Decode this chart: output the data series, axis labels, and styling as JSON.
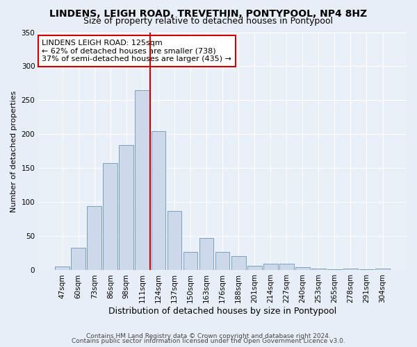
{
  "title": "LINDENS, LEIGH ROAD, TREVETHIN, PONTYPOOL, NP4 8HZ",
  "subtitle": "Size of property relative to detached houses in Pontypool",
  "xlabel": "Distribution of detached houses by size in Pontypool",
  "ylabel": "Number of detached properties",
  "categories": [
    "47sqm",
    "60sqm",
    "73sqm",
    "86sqm",
    "98sqm",
    "111sqm",
    "124sqm",
    "137sqm",
    "150sqm",
    "163sqm",
    "176sqm",
    "188sqm",
    "201sqm",
    "214sqm",
    "227sqm",
    "240sqm",
    "253sqm",
    "265sqm",
    "278sqm",
    "291sqm",
    "304sqm"
  ],
  "values": [
    6,
    33,
    94,
    158,
    184,
    265,
    205,
    87,
    27,
    47,
    27,
    21,
    7,
    10,
    10,
    5,
    2,
    1,
    2,
    1,
    3
  ],
  "bar_color": "#cdd9ea",
  "bar_edge_color": "#7a9fc0",
  "vline_x_index": 5.5,
  "vline_color": "#cc0000",
  "annotation_line1": "LINDENS LEIGH ROAD: 125sqm",
  "annotation_line2": "← 62% of detached houses are smaller (738)",
  "annotation_line3": "37% of semi-detached houses are larger (435) →",
  "annotation_box_color": "#ffffff",
  "annotation_box_edge": "#cc0000",
  "ylim": [
    0,
    350
  ],
  "yticks": [
    0,
    50,
    100,
    150,
    200,
    250,
    300,
    350
  ],
  "footer1": "Contains HM Land Registry data © Crown copyright and database right 2024.",
  "footer2": "Contains public sector information licensed under the Open Government Licence v3.0.",
  "bg_color": "#e8eef7",
  "plot_bg_color": "#eaf0f8",
  "title_fontsize": 10,
  "subtitle_fontsize": 9,
  "ylabel_fontsize": 8,
  "xlabel_fontsize": 9,
  "tick_fontsize": 7.5,
  "annot_fontsize": 8,
  "footer_fontsize": 6.5
}
